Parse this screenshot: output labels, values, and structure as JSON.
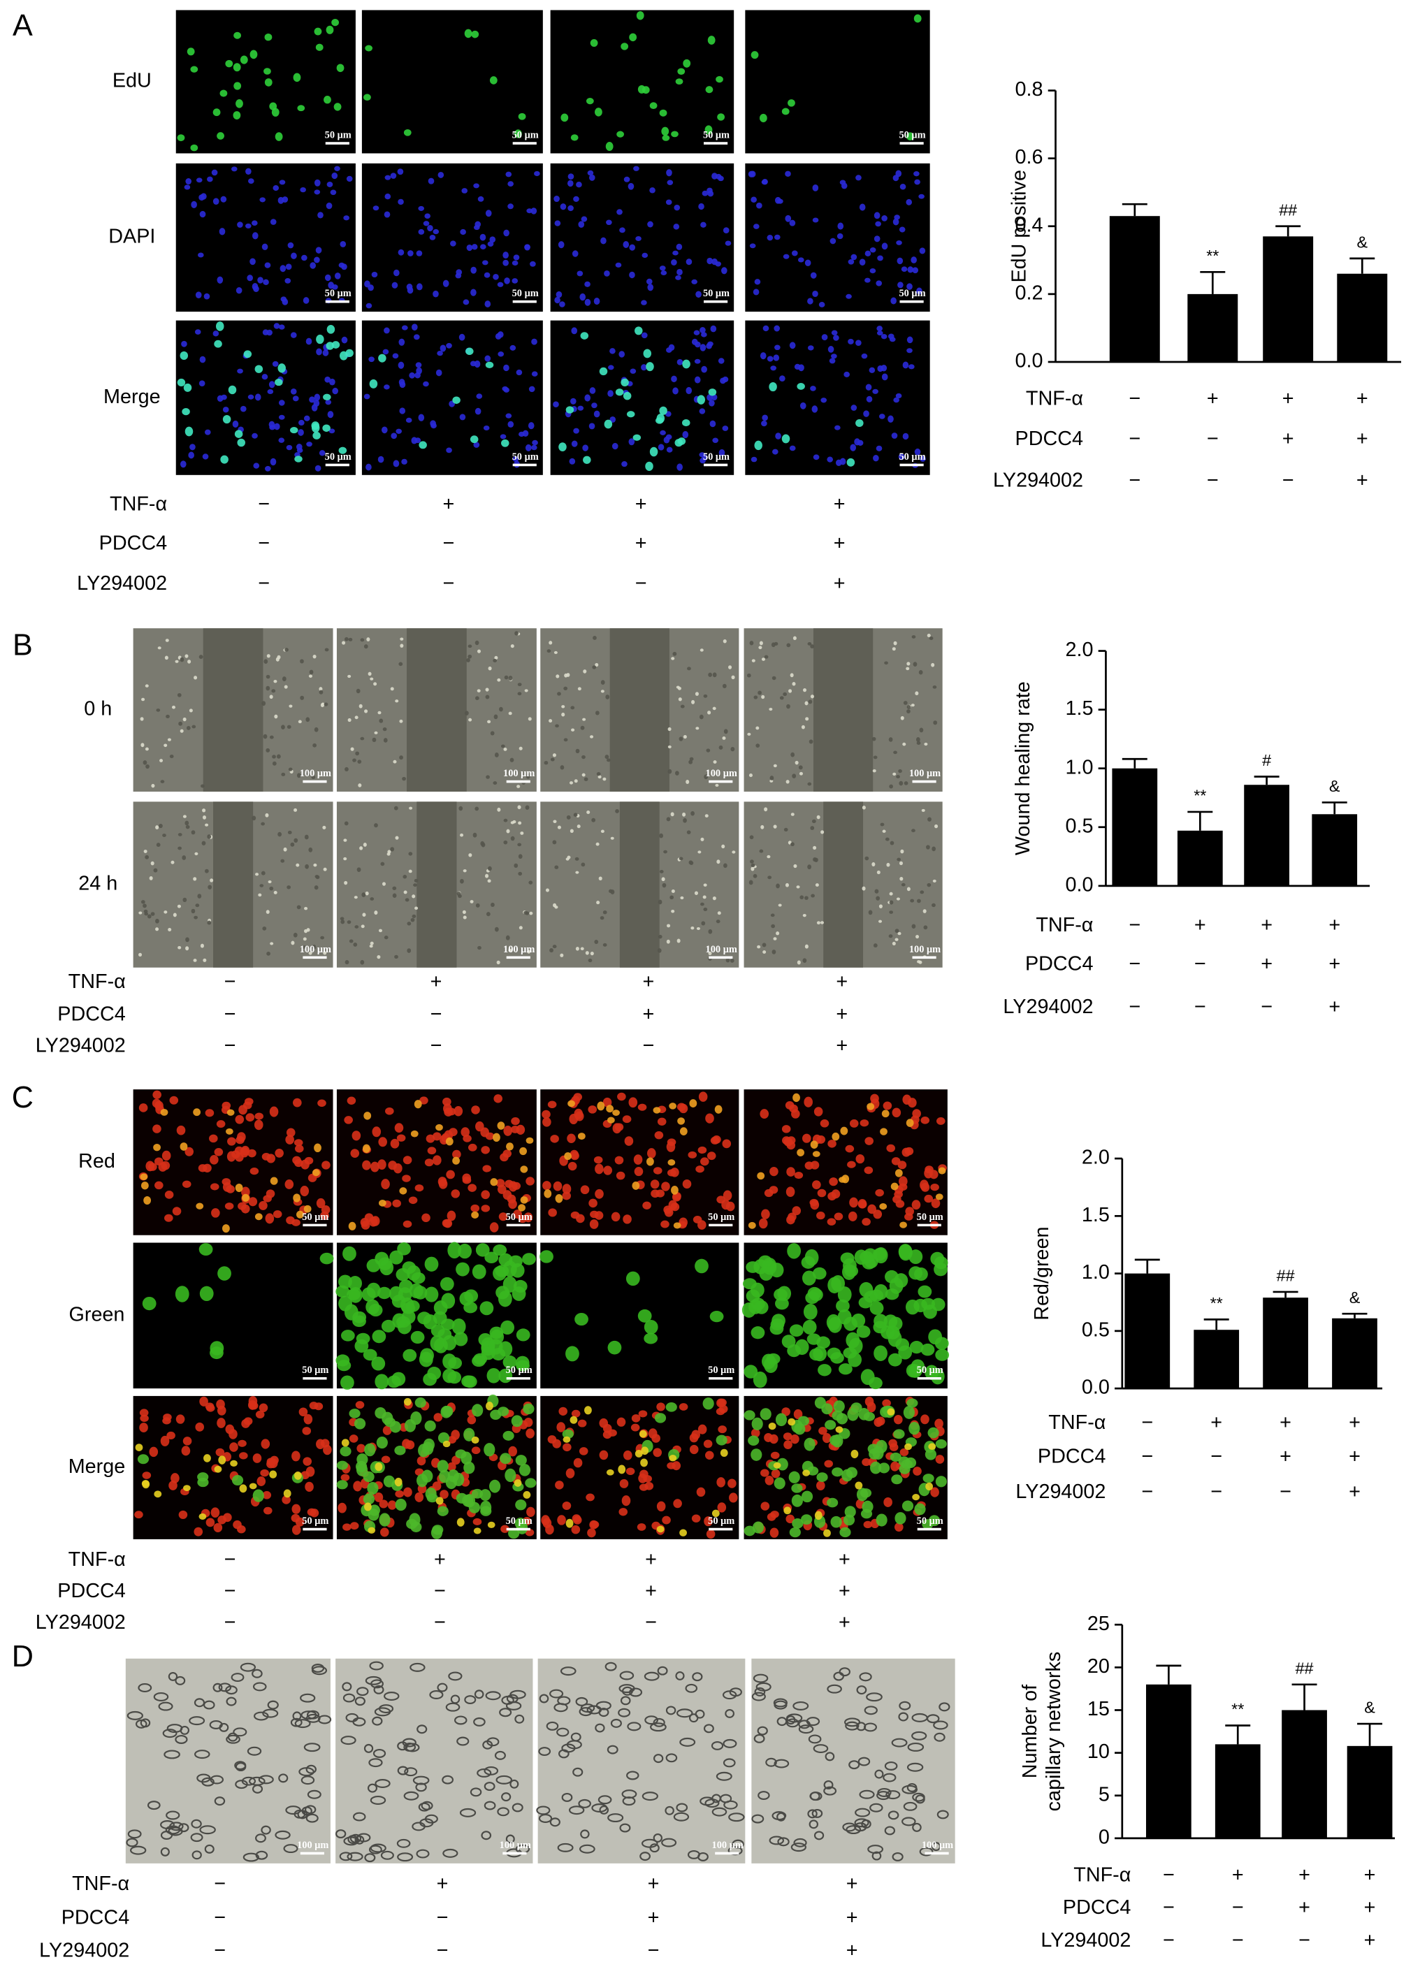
{
  "panels": [
    {
      "label": "A",
      "rows": [
        "EdU",
        "DAPI",
        "Merge"
      ],
      "scale_bar": "50 μm"
    },
    {
      "label": "B",
      "rows": [
        "0 h",
        "24 h"
      ],
      "scale_bar": "100 μm"
    },
    {
      "label": "C",
      "rows": [
        "Red",
        "Green",
        "Merge"
      ],
      "scale_bar": "50 μm"
    },
    {
      "label": "D",
      "scale_bar": "100 μm"
    }
  ],
  "chart_data": [
    {
      "type": "bar",
      "ylabel": [
        "EdU positive"
      ],
      "categories": [
        null,
        null,
        null,
        null
      ],
      "values": [
        0.43,
        0.2,
        0.37,
        0.26
      ],
      "errors": [
        0.035,
        0.065,
        0.03,
        0.045
      ],
      "annotations": [
        null,
        "**",
        "##",
        "&"
      ],
      "color": "#000000",
      "ylim": [
        0,
        0.8
      ],
      "yticks": [
        {
          "value": 0,
          "label": "0.0"
        },
        0.2,
        0.4,
        0.6,
        0.8
      ],
      "treatments": [
        {
          "name": "TNF-α",
          "signs": [
            "−",
            "+",
            "+",
            "+"
          ]
        },
        {
          "name": "PDCC4",
          "signs": [
            "−",
            "−",
            "+",
            "+"
          ]
        },
        {
          "name": "LY294002",
          "signs": [
            "−",
            "−",
            "−",
            "+"
          ]
        }
      ]
    },
    {
      "type": "bar",
      "ylabel": [
        "Wound healing rate"
      ],
      "categories": [
        null,
        null,
        null,
        null
      ],
      "values": [
        1.0,
        0.47,
        0.86,
        0.61
      ],
      "errors": [
        0.08,
        0.16,
        0.07,
        0.1
      ],
      "annotations": [
        null,
        "**",
        "#",
        "&"
      ],
      "color": "#000000",
      "ylim": [
        0,
        2
      ],
      "yticks": [
        {
          "value": 0,
          "label": "0.0"
        },
        0.5,
        {
          "value": 1,
          "label": "1.0"
        },
        1.5,
        {
          "value": 2,
          "label": "2.0"
        }
      ],
      "treatments": [
        {
          "name": "TNF-α",
          "signs": [
            "−",
            "+",
            "+",
            "+"
          ]
        },
        {
          "name": "PDCC4",
          "signs": [
            "−",
            "−",
            "+",
            "+"
          ]
        },
        {
          "name": "LY294002",
          "signs": [
            "−",
            "−",
            "−",
            "+"
          ]
        }
      ]
    },
    {
      "type": "bar",
      "ylabel": [
        "Red/green"
      ],
      "categories": [
        null,
        null,
        null,
        null
      ],
      "values": [
        1.0,
        0.51,
        0.79,
        0.61
      ],
      "errors": [
        0.12,
        0.09,
        0.05,
        0.04
      ],
      "annotations": [
        null,
        "**",
        "##",
        "&"
      ],
      "color": "#000000",
      "ylim": [
        0,
        2
      ],
      "yticks": [
        {
          "value": 0,
          "label": "0.0"
        },
        0.5,
        {
          "value": 1,
          "label": "1.0"
        },
        1.5,
        {
          "value": 2,
          "label": "2.0"
        }
      ],
      "treatments": [
        {
          "name": "TNF-α",
          "signs": [
            "−",
            "+",
            "+",
            "+"
          ]
        },
        {
          "name": "PDCC4",
          "signs": [
            "−",
            "−",
            "+",
            "+"
          ]
        },
        {
          "name": "LY294002",
          "signs": [
            "−",
            "−",
            "−",
            "+"
          ]
        }
      ]
    },
    {
      "type": "bar",
      "ylabel": [
        "Number of",
        "capillary networks"
      ],
      "categories": [
        null,
        null,
        null,
        null
      ],
      "values": [
        18,
        11,
        15,
        10.8
      ],
      "errors": [
        2.2,
        2.2,
        3,
        2.6
      ],
      "annotations": [
        null,
        "**",
        "##",
        "&"
      ],
      "color": "#000000",
      "ylim": [
        0,
        25
      ],
      "yticks": [
        0,
        5,
        10,
        15,
        20,
        25
      ],
      "treatments": [
        {
          "name": "TNF-α",
          "signs": [
            "−",
            "+",
            "+",
            "+"
          ]
        },
        {
          "name": "PDCC4",
          "signs": [
            "−",
            "−",
            "+",
            "+"
          ]
        },
        {
          "name": "LY294002",
          "signs": [
            "−",
            "−",
            "−",
            "+"
          ]
        }
      ]
    }
  ]
}
